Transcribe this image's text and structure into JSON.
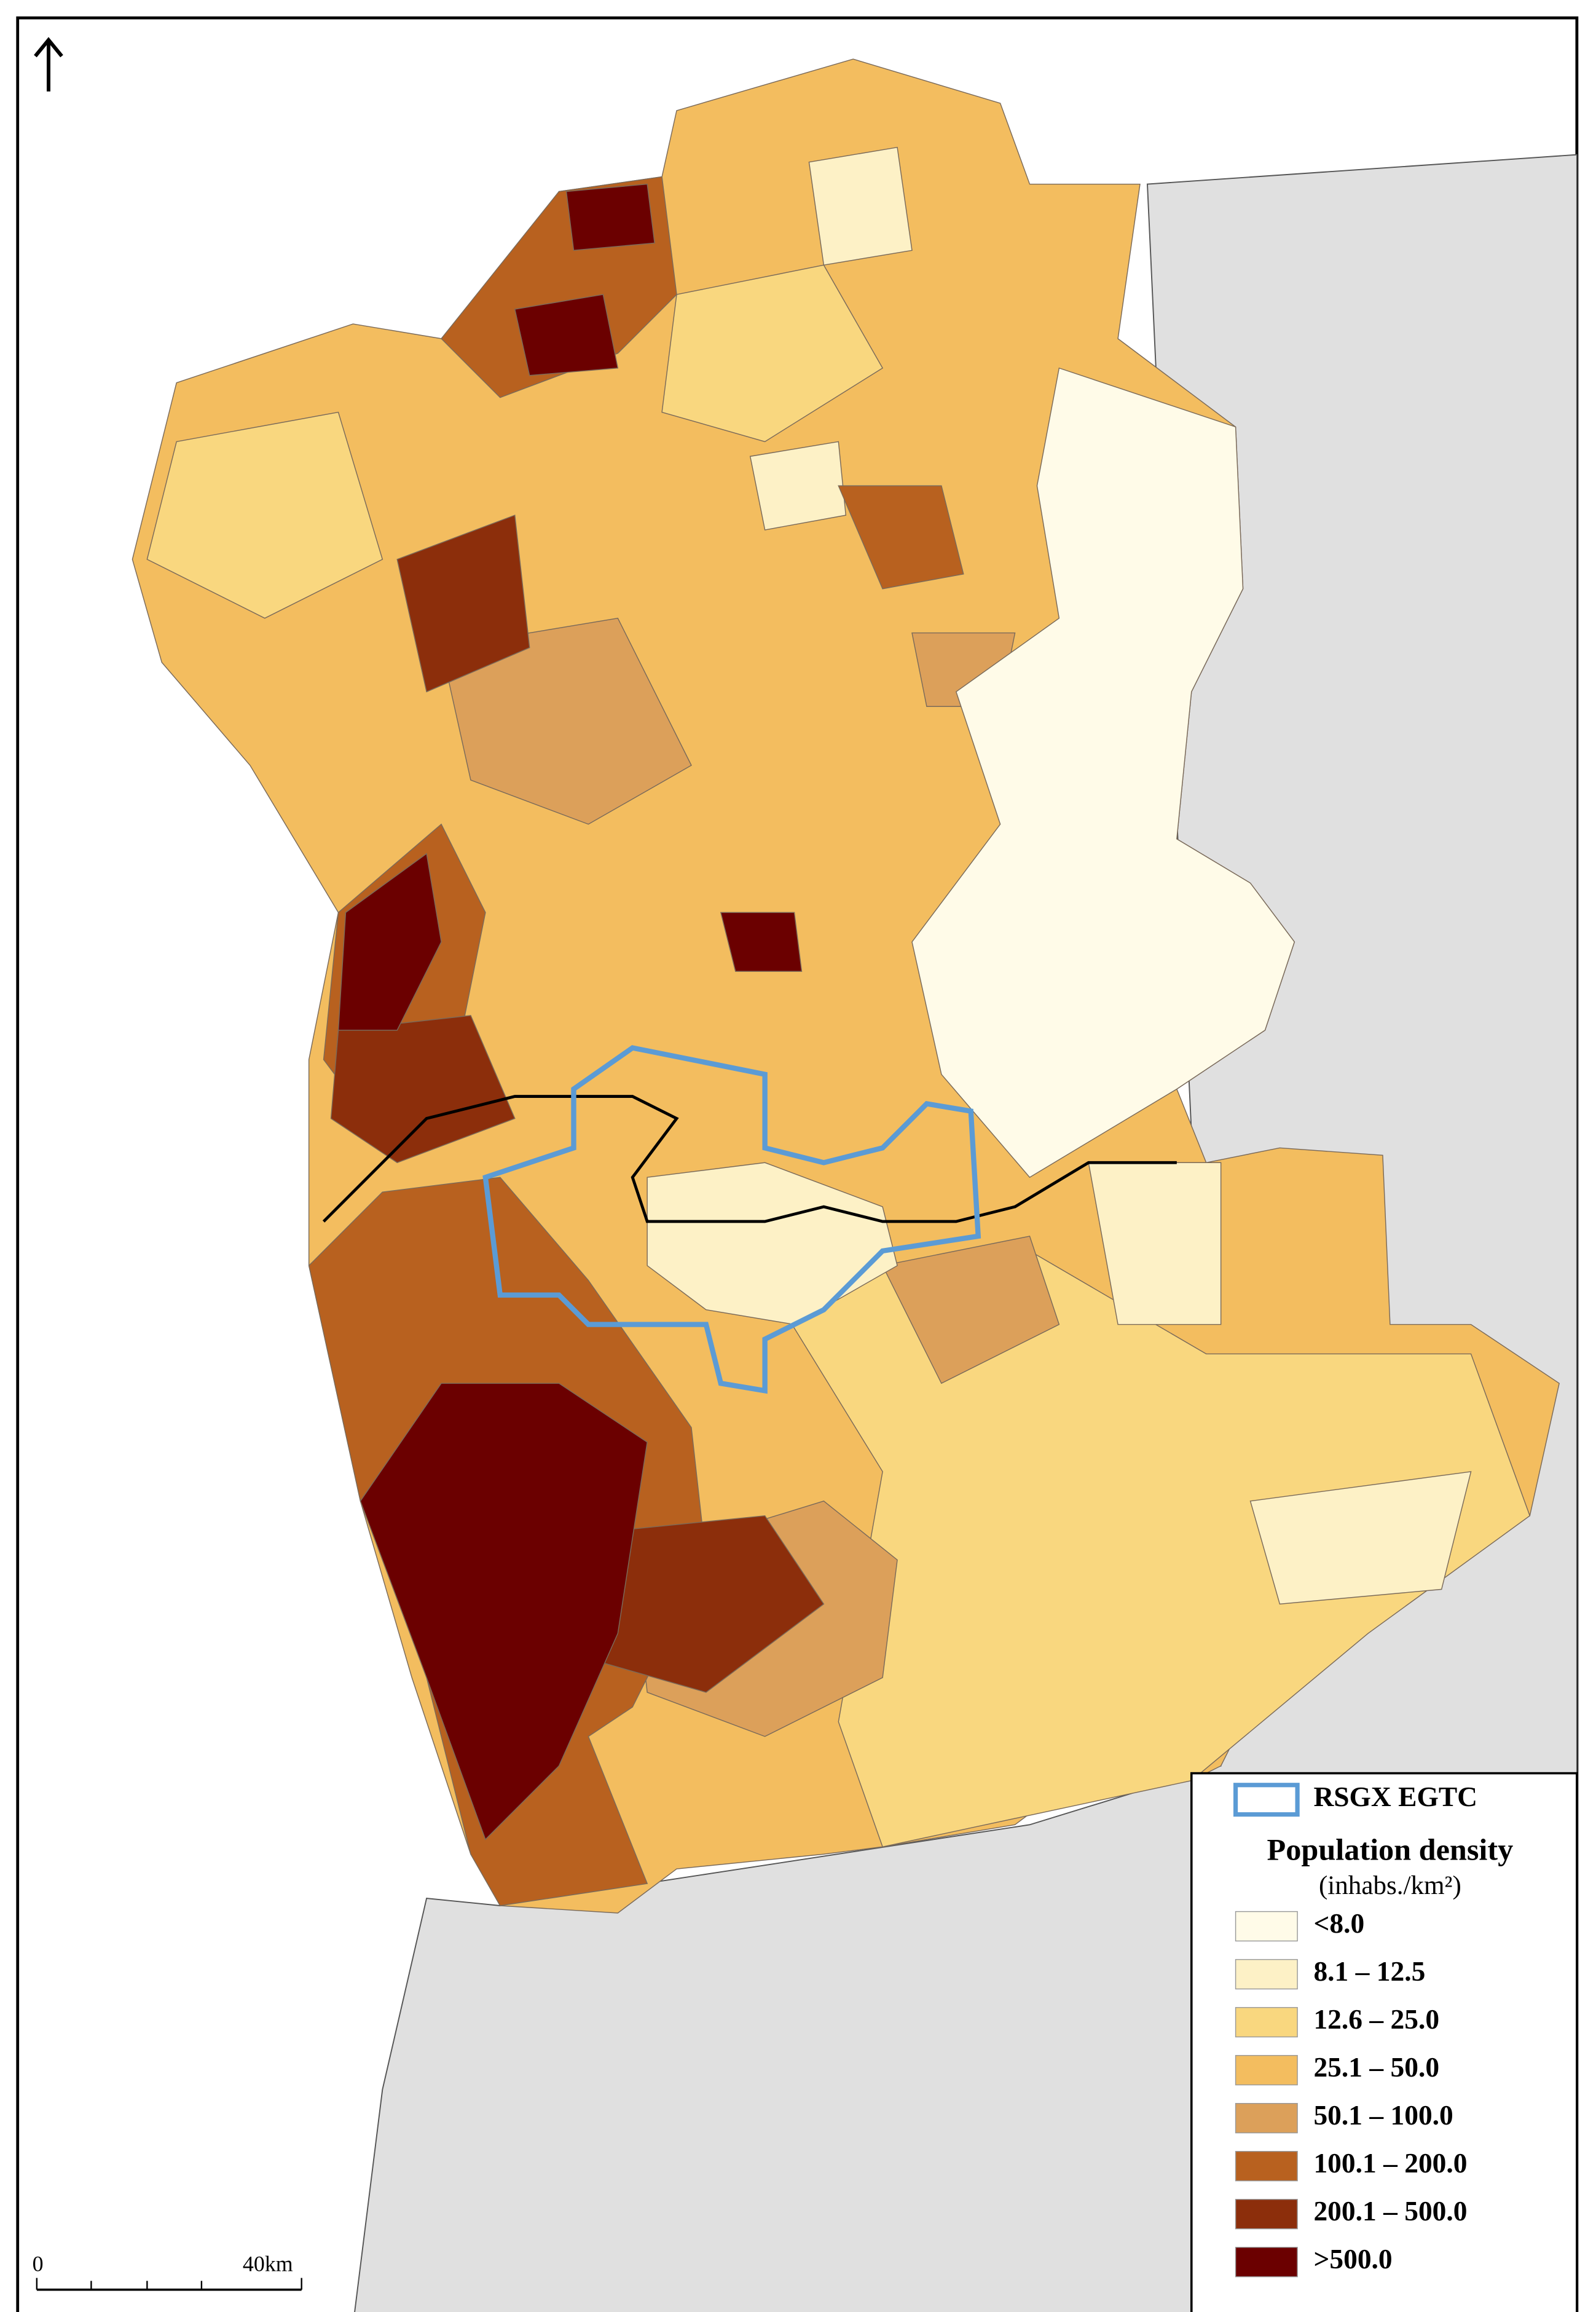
{
  "legend": {
    "egtc_label": "RSGX EGTC",
    "egtc_color": "#5b9bd5",
    "title": "Population density",
    "unit": "(inhabs./km²)",
    "classes": [
      {
        "label": "<8.0",
        "color": "#fffbe8"
      },
      {
        "label": "8.1 – 12.5",
        "color": "#fdf1c6"
      },
      {
        "label": "12.6 – 25.0",
        "color": "#f9d77f"
      },
      {
        "label": "25.1 – 50.0",
        "color": "#f3bd5f"
      },
      {
        "label": "50.1 – 100.0",
        "color": "#dca05a"
      },
      {
        "label": "100.1 – 200.0",
        "color": "#b8611f"
      },
      {
        "label": "200.1 – 500.0",
        "color": "#8c2e0b"
      },
      {
        "label": ">500.0",
        "color": "#6b0000"
      }
    ]
  },
  "scale_bar": {
    "start": "0",
    "end": "40km"
  }
}
